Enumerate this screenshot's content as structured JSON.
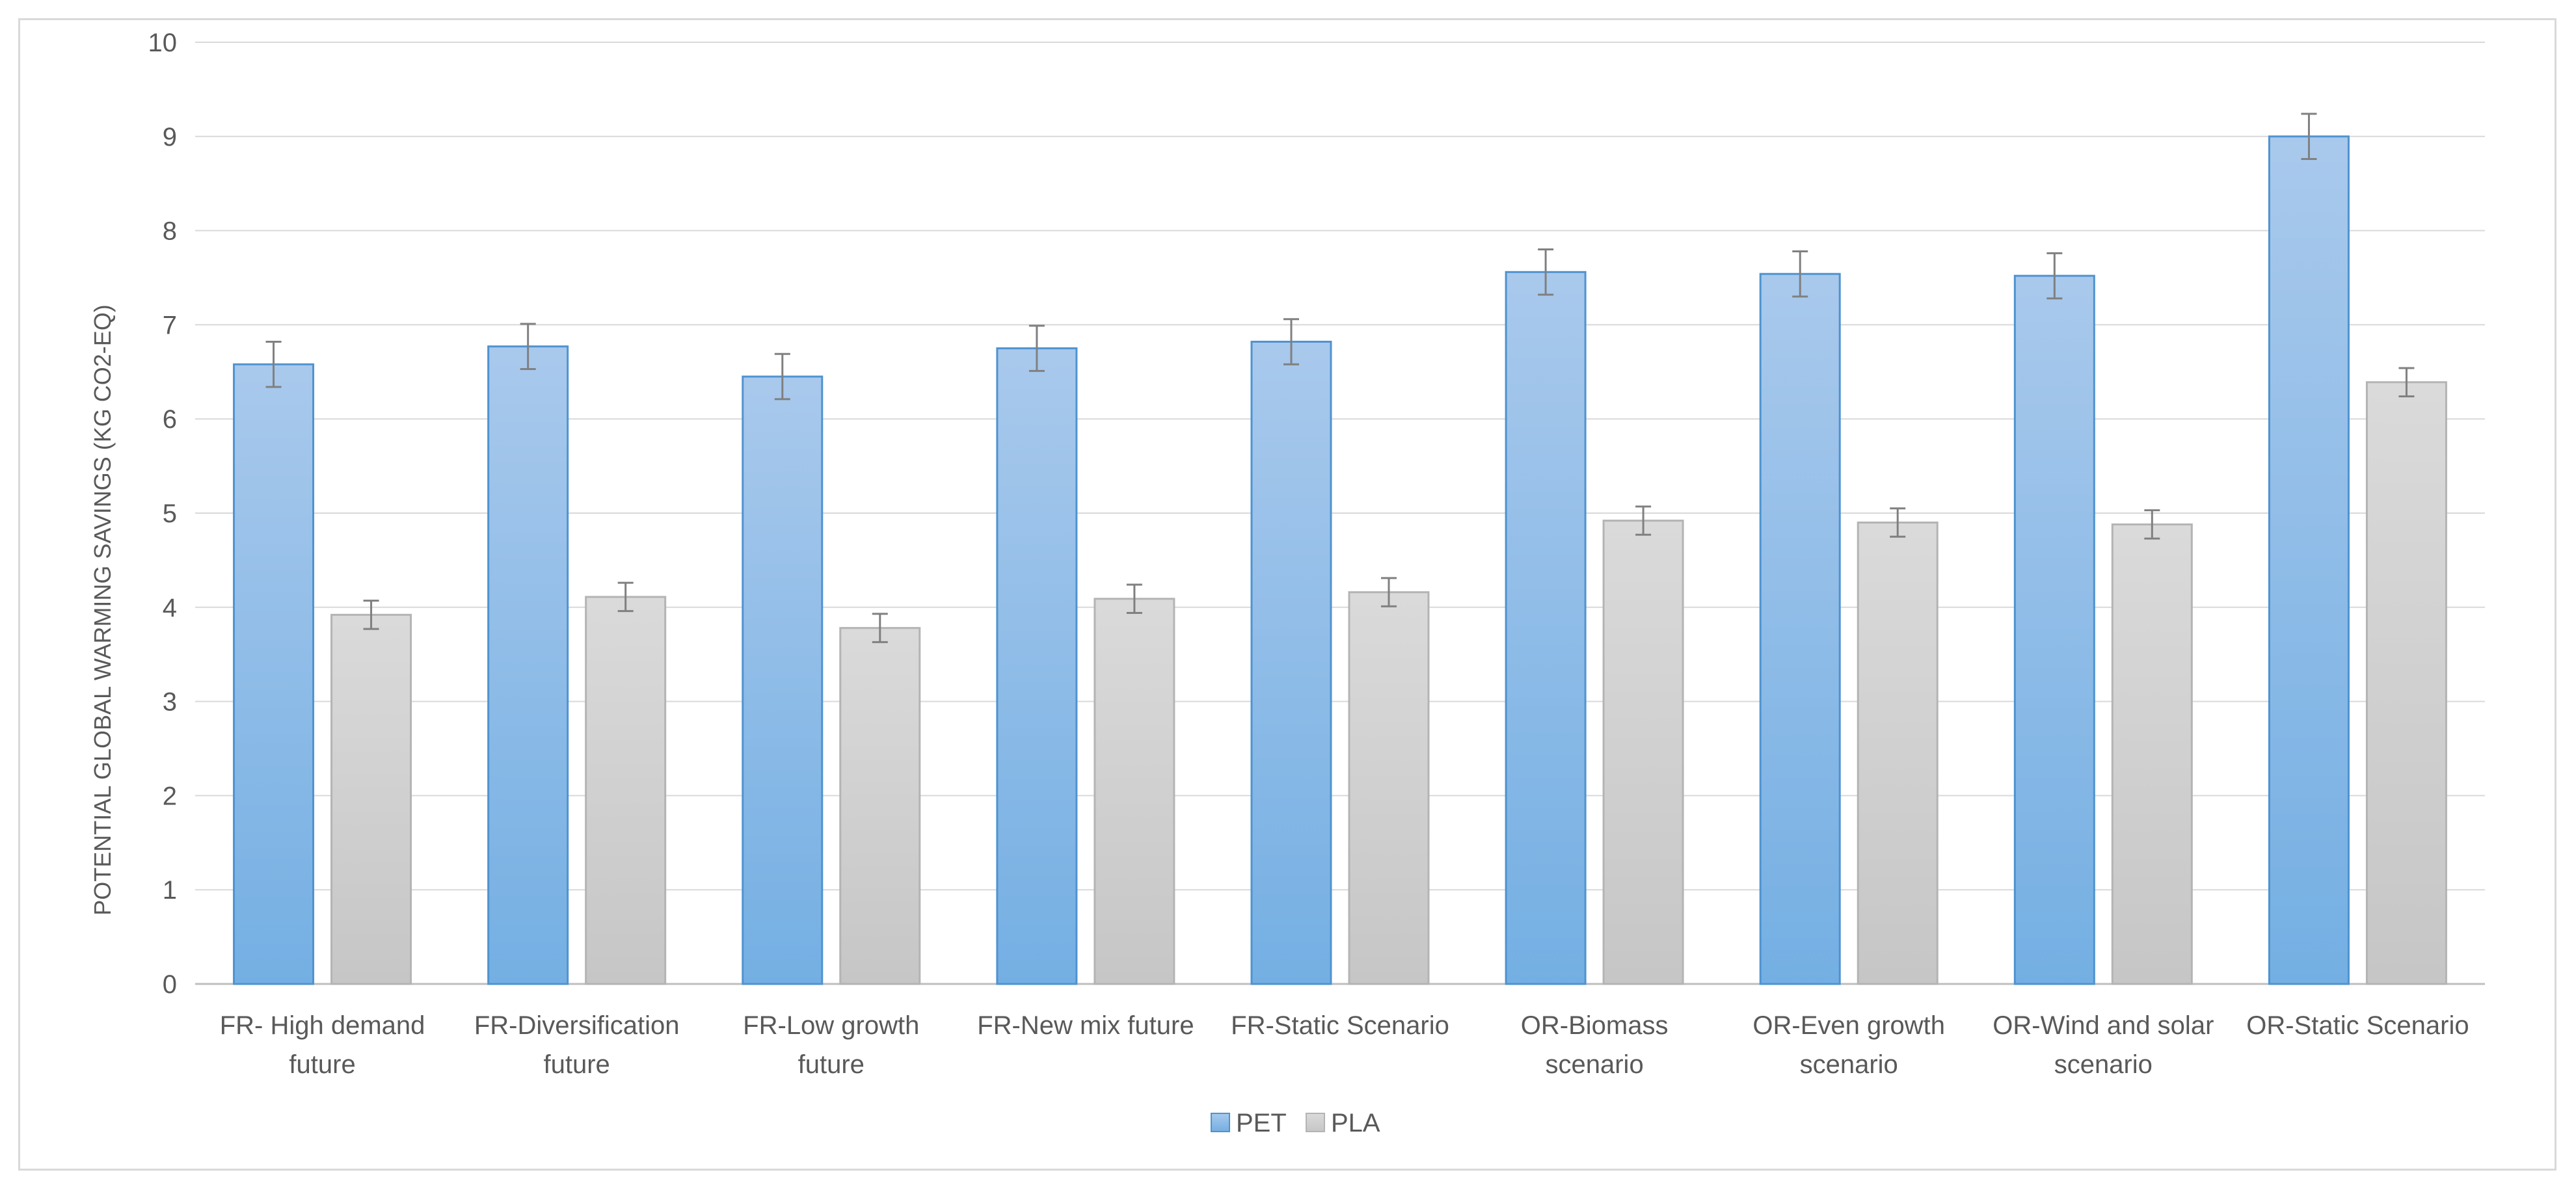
{
  "chart_data": {
    "type": "bar",
    "title": "",
    "xlabel": "",
    "ylabel": "POTENTIAL GLOBAL WARMING SAVINGS (KG CO2-EQ)",
    "ylim": [
      0,
      10
    ],
    "yticks": [
      "0",
      "1",
      "2",
      "3",
      "4",
      "5",
      "6",
      "7",
      "8",
      "9",
      "10"
    ],
    "grid": true,
    "legend_position": "bottom",
    "categories": [
      [
        "FR- High demand",
        "future"
      ],
      [
        "FR-Diversification",
        "future"
      ],
      [
        "FR-Low growth",
        "future"
      ],
      [
        "FR-New mix future"
      ],
      [
        "FR-Static Scenario"
      ],
      [
        "OR-Biomass",
        "scenario"
      ],
      [
        "OR-Even growth",
        "scenario"
      ],
      [
        "OR-Wind and solar",
        "scenario"
      ],
      [
        "OR-Static Scenario"
      ]
    ],
    "series": [
      {
        "name": "PET",
        "color": "#5b9bd5",
        "values": [
          6.58,
          6.77,
          6.45,
          6.75,
          6.82,
          7.56,
          7.54,
          7.52,
          9.0
        ],
        "error": [
          0.24,
          0.24,
          0.24,
          0.24,
          0.24,
          0.24,
          0.24,
          0.24,
          0.24
        ]
      },
      {
        "name": "PLA",
        "color": "#bfbfbf",
        "values": [
          3.92,
          4.11,
          3.78,
          4.09,
          4.16,
          4.92,
          4.9,
          4.88,
          6.39
        ],
        "error": [
          0.15,
          0.15,
          0.15,
          0.15,
          0.15,
          0.15,
          0.15,
          0.15,
          0.15
        ]
      }
    ]
  }
}
